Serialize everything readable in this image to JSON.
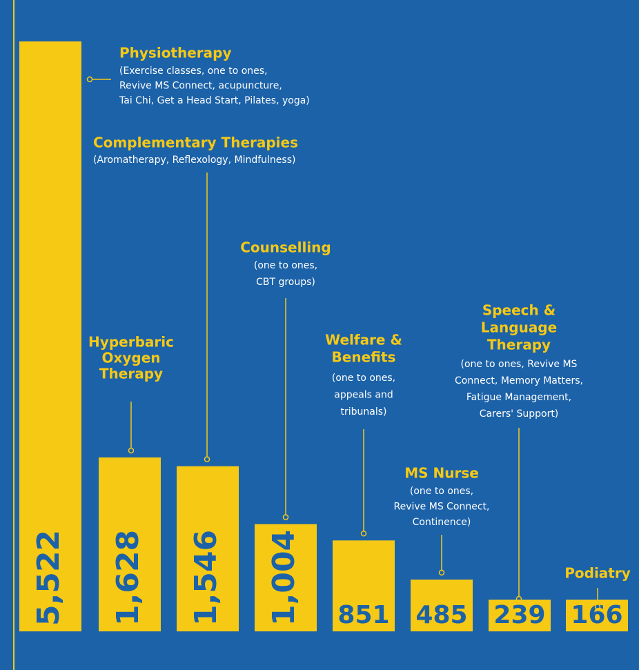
{
  "chart_data": {
    "type": "bar",
    "color": "#f6c915",
    "categories": [
      [
        "Physiotherapy"
      ],
      [
        "Hyperbaric",
        "Oxygen",
        "Therapy"
      ],
      [
        "Complementary Therapies"
      ],
      [
        "Counselling"
      ],
      [
        "Welfare &",
        "Benefits"
      ],
      [
        "MS Nurse"
      ],
      [
        "Speech &",
        "Language",
        "Therapy"
      ],
      [
        "Podiatry"
      ]
    ],
    "descriptions": [
      [
        "(Exercise classes, one to ones,",
        "Revive MS Connect, acupuncture,",
        "Tai Chi, Get a Head Start, Pilates, yoga)"
      ],
      null,
      [
        "(Aromatherapy, Reflexology, Mindfulness)"
      ],
      [
        "(one to ones,",
        "CBT groups)"
      ],
      [
        "(one to ones,",
        "appeals and",
        "tribunals)"
      ],
      [
        "(one to ones,",
        "Revive MS Connect,",
        "Continence)"
      ],
      [
        "(one to ones, Revive MS",
        "Connect, Memory Matters,",
        "Fatigue Management,",
        "Carers' Support)"
      ],
      null
    ],
    "values": [
      5522,
      1628,
      1546,
      1004,
      851,
      485,
      239,
      166
    ],
    "value_labels": [
      "5,522",
      "1,628",
      "1,546",
      "1,004",
      "851",
      "485",
      "239",
      "166"
    ],
    "ylim": [
      0,
      5600
    ]
  }
}
